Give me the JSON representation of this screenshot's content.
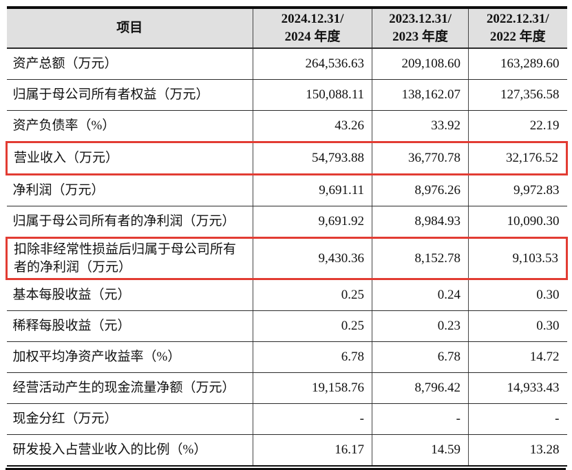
{
  "table": {
    "highlight_color": "#e23c33",
    "header_bg": "#e0e0e0",
    "header": {
      "item_label": "项目",
      "col_2024": {
        "line1": "2024.12.31/",
        "line2": "2024 年度"
      },
      "col_2023": {
        "line1": "2023.12.31/",
        "line2": "2023 年度"
      },
      "col_2022": {
        "line1": "2022.12.31/",
        "line2": "2022 年度"
      }
    },
    "rows": [
      {
        "label": "资产总额（万元）",
        "y2024": "264,536.63",
        "y2023": "209,108.60",
        "y2022": "163,289.60",
        "highlighted": false
      },
      {
        "label": "归属于母公司所有者权益（万元）",
        "y2024": "150,088.11",
        "y2023": "138,162.07",
        "y2022": "127,356.58",
        "highlighted": false
      },
      {
        "label": "资产负债率（%）",
        "y2024": "43.26",
        "y2023": "33.92",
        "y2022": "22.19",
        "highlighted": false
      },
      {
        "label": "营业收入（万元）",
        "y2024": "54,793.88",
        "y2023": "36,770.78",
        "y2022": "32,176.52",
        "highlighted": true
      },
      {
        "label": "净利润（万元）",
        "y2024": "9,691.11",
        "y2023": "8,976.26",
        "y2022": "9,972.83",
        "highlighted": false
      },
      {
        "label": "归属于母公司所有者的净利润（万元）",
        "y2024": "9,691.92",
        "y2023": "8,984.93",
        "y2022": "10,090.30",
        "highlighted": false
      },
      {
        "label": "扣除非经常性损益后归属于母公司所有者的净利润（万元）",
        "y2024": "9,430.36",
        "y2023": "8,152.78",
        "y2022": "9,103.53",
        "highlighted": true
      },
      {
        "label": "基本每股收益（元）",
        "y2024": "0.25",
        "y2023": "0.24",
        "y2022": "0.30",
        "highlighted": false
      },
      {
        "label": "稀释每股收益（元）",
        "y2024": "0.25",
        "y2023": "0.23",
        "y2022": "0.30",
        "highlighted": false
      },
      {
        "label": "加权平均净资产收益率（%）",
        "y2024": "6.78",
        "y2023": "6.78",
        "y2022": "14.72",
        "highlighted": false
      },
      {
        "label": "经营活动产生的现金流量净额（万元）",
        "y2024": "19,158.76",
        "y2023": "8,796.42",
        "y2022": "14,933.43",
        "highlighted": false
      },
      {
        "label": "现金分红（万元）",
        "y2024": "-",
        "y2023": "-",
        "y2022": "-",
        "highlighted": false
      },
      {
        "label": "研发投入占营业收入的比例（%）",
        "y2024": "16.17",
        "y2023": "14.59",
        "y2022": "13.28",
        "highlighted": false
      }
    ]
  }
}
